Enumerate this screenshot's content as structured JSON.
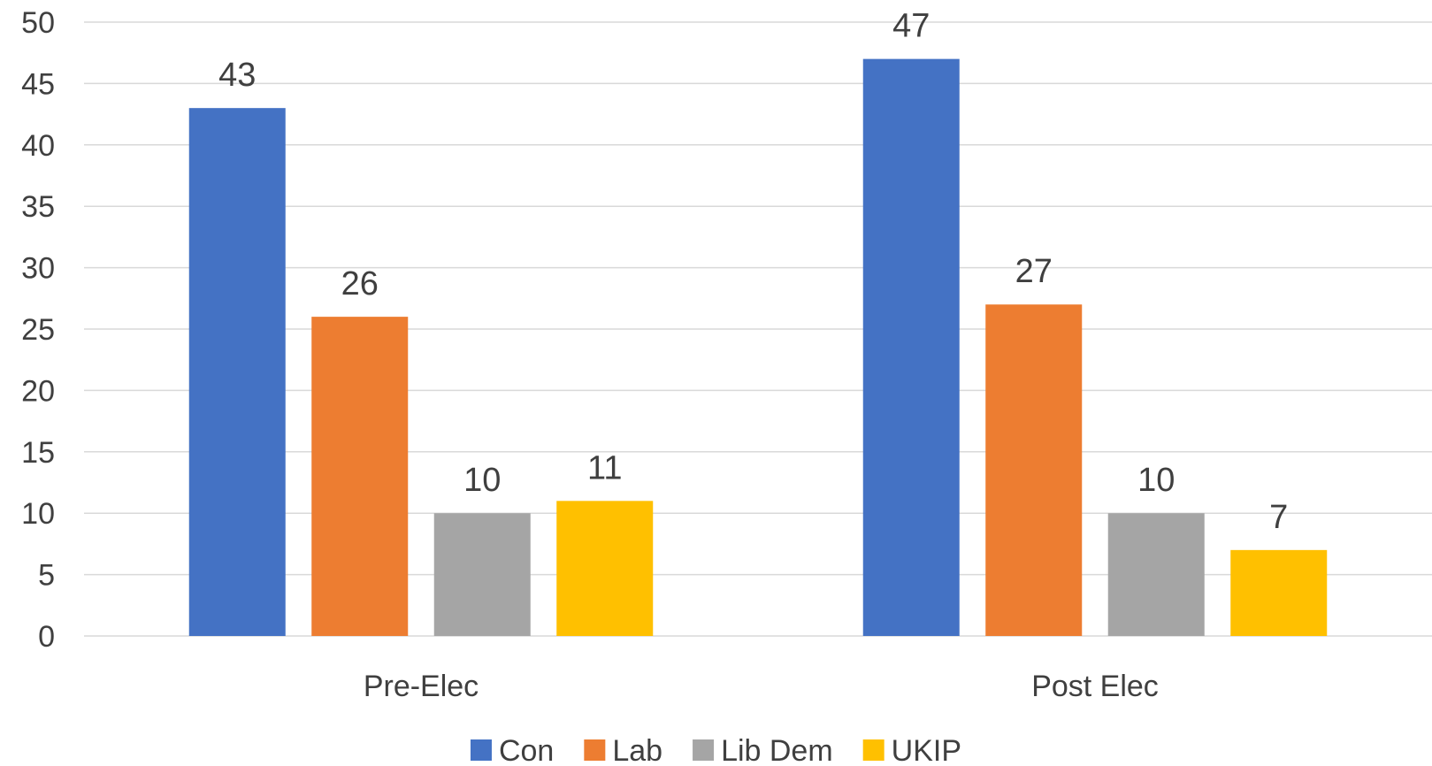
{
  "chart_data": {
    "type": "bar",
    "categories": [
      "Pre-Elec",
      "Post Elec"
    ],
    "series": [
      {
        "name": "Con",
        "values": [
          43,
          47
        ],
        "color": "#4472C4"
      },
      {
        "name": "Lab",
        "values": [
          26,
          27
        ],
        "color": "#ED7D31"
      },
      {
        "name": "Lib Dem",
        "values": [
          10,
          10
        ],
        "color": "#A5A5A5"
      },
      {
        "name": "UKIP",
        "values": [
          11,
          7
        ],
        "color": "#FFC000"
      }
    ],
    "ylim": [
      0,
      50
    ],
    "yticks": [
      0,
      5,
      10,
      15,
      20,
      25,
      30,
      35,
      40,
      45,
      50
    ],
    "grid": true,
    "legend": "bottom",
    "data_labels": true,
    "gridline_color": "#D9D9D9",
    "text_color": "#3F3F3F"
  }
}
